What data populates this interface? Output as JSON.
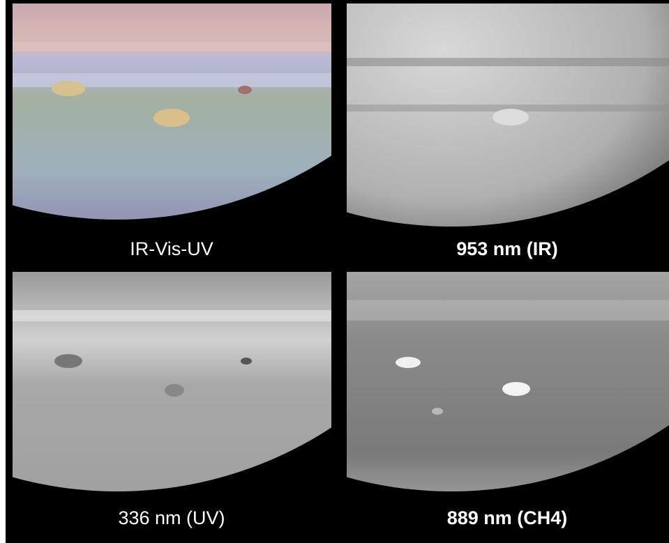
{
  "panels": [
    {
      "label": "IR-Vis-UV"
    },
    {
      "label": "953 nm (IR)"
    },
    {
      "label": "336 nm (UV)"
    },
    {
      "label": "889 nm (CH4)"
    }
  ]
}
